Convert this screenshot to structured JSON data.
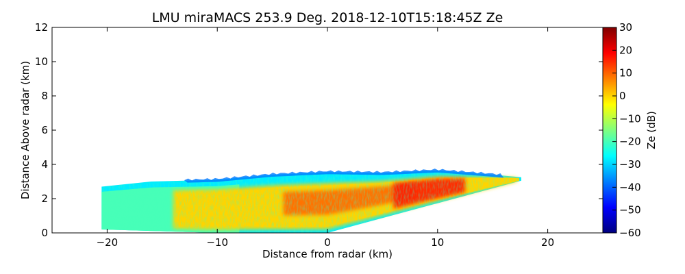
{
  "chart_data": {
    "type": "heatmap",
    "title": "LMU miraMACS 253.9 Deg. 2018-12-10T15:18:45Z  Ze",
    "xlabel": "Distance from radar (km)",
    "ylabel": "Distance Above radar  (km)",
    "xlim": [
      -25,
      25
    ],
    "ylim": [
      0,
      12
    ],
    "x_ticks": [
      -20,
      -10,
      0,
      10,
      20
    ],
    "x_tick_labels": [
      "−20",
      "−10",
      "0",
      "10",
      "20"
    ],
    "y_ticks": [
      0,
      2,
      4,
      6,
      8,
      10,
      12
    ],
    "y_tick_labels": [
      "0",
      "2",
      "4",
      "6",
      "8",
      "10",
      "12"
    ],
    "colorbar": {
      "label": "Ze (dB)",
      "range": [
        -60,
        30
      ],
      "ticks": [
        30,
        20,
        10,
        0,
        -10,
        -20,
        -30,
        -40,
        -50,
        -60
      ],
      "tick_labels": [
        "30",
        "20",
        "10",
        "0",
        "−10",
        "−20",
        "−30",
        "−40",
        "−50",
        "−60"
      ],
      "colormap": "jet",
      "colormap_stops": [
        "#00007f",
        "#0000ff",
        "#007fff",
        "#00ffff",
        "#7fff7f",
        "#ffff00",
        "#ff7f00",
        "#ff0000",
        "#7f0000"
      ]
    },
    "echo_region": {
      "scan_azimuth_deg": 253.9,
      "echo_top_km": [
        {
          "x": -20.5,
          "y": 2.7
        },
        {
          "x": -16,
          "y": 3.0
        },
        {
          "x": -10,
          "y": 3.1
        },
        {
          "x": -5,
          "y": 3.4
        },
        {
          "x": 0,
          "y": 3.55
        },
        {
          "x": 5,
          "y": 3.5
        },
        {
          "x": 10,
          "y": 3.65
        },
        {
          "x": 15,
          "y": 3.4
        },
        {
          "x": 17.6,
          "y": 3.25
        }
      ],
      "echo_base_km": [
        {
          "x": -20.5,
          "y": 0.2
        },
        {
          "x": -10,
          "y": 0.0
        },
        {
          "x": 0,
          "y": 0.0
        },
        {
          "x": 17.6,
          "y": 3.05
        }
      ],
      "reflectivity_zones_dB": [
        {
          "name": "outer-edge",
          "value": -28
        },
        {
          "name": "left-low-echo",
          "value": -20
        },
        {
          "name": "main-body",
          "value": 0
        },
        {
          "name": "core",
          "value": 10
        },
        {
          "name": "right-core",
          "value": 16
        }
      ]
    }
  }
}
